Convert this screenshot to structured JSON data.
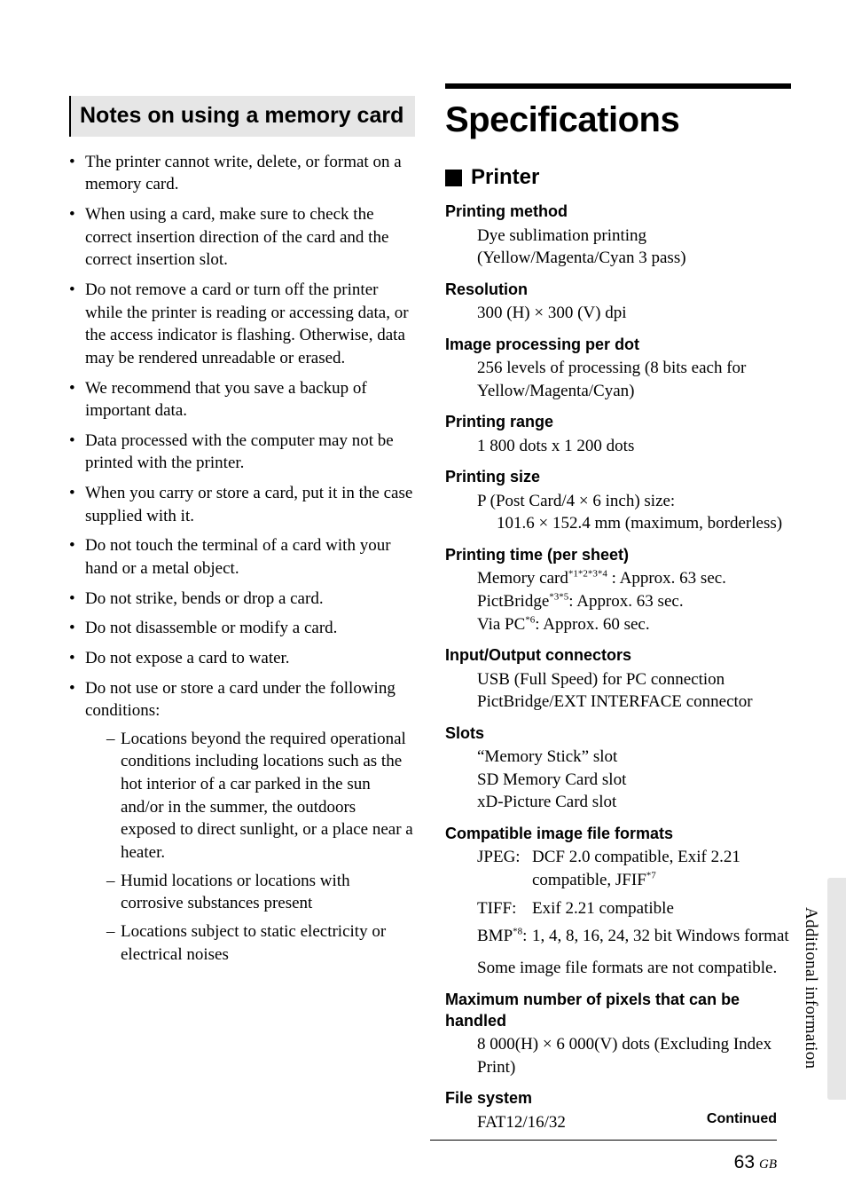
{
  "left": {
    "heading": "Notes on using a memory card",
    "bullets": [
      "The printer cannot write, delete, or format on a memory card.",
      "When using a card, make sure to check the correct insertion direction of the card and the correct insertion slot.",
      "Do not remove a card or turn off the printer while the printer is reading or accessing data, or the access indicator is flashing. Otherwise, data may be rendered unreadable or erased.",
      "We recommend that you save a backup of important data.",
      "Data processed with the computer may not be printed with the printer.",
      "When you carry or store a card, put it in the case supplied with it.",
      "Do not touch the terminal of a card with your hand or a metal object.",
      "Do not strike, bends or drop a card.",
      "Do not disassemble or modify a card.",
      "Do not expose a card to water."
    ],
    "last_bullet_lead": "Do not use or store a card under the following conditions:",
    "sub_dashes": [
      "Locations beyond the required operational conditions including locations such as the hot interior of a car parked in the sun and/or in the summer, the outdoors exposed to direct sunlight, or a place near a heater.",
      "Humid locations or locations with corrosive substances present",
      "Locations subject to static electricity or electrical noises"
    ]
  },
  "right": {
    "title": "Specifications",
    "subhead": "Printer",
    "printing_method": {
      "term": "Printing method",
      "val": "Dye sublimation printing (Yellow/Magenta/Cyan 3 pass)"
    },
    "resolution": {
      "term": "Resolution",
      "val": "300 (H) × 300 (V) dpi"
    },
    "image_proc": {
      "term": "Image processing per dot",
      "val": "256 levels of processing (8 bits each for Yellow/Magenta/Cyan)"
    },
    "printing_range": {
      "term": "Printing range",
      "val": "1 800 dots x 1 200 dots"
    },
    "printing_size": {
      "term": "Printing size",
      "l1": "P (Post Card/4 × 6 inch) size:",
      "l2": "101.6 × 152.4 mm (maximum, borderless)"
    },
    "printing_time": {
      "term": "Printing time (per sheet)",
      "mem_pre": "Memory card",
      "mem_sup": "*1*2*3*4",
      "mem_post": " : Approx. 63 sec.",
      "pb_pre": "PictBridge",
      "pb_sup": "*3*5",
      "pb_post": ": Approx. 63 sec.",
      "pc_pre": "Via PC",
      "pc_sup": "*6",
      "pc_post": ": Approx. 60 sec."
    },
    "io": {
      "term": "Input/Output connectors",
      "l1": "USB (Full Speed) for PC connection",
      "l2": "PictBridge/EXT INTERFACE connector"
    },
    "slots": {
      "term": "Slots",
      "l1": "“Memory Stick” slot",
      "l2": "SD Memory Card slot",
      "l3": "xD-Picture Card slot"
    },
    "formats": {
      "term": "Compatible image file formats",
      "jpeg_label": "JPEG:",
      "jpeg_l1": "DCF 2.0 compatible, Exif 2.21",
      "jpeg_l2_pre": "compatible, JFIF",
      "jpeg_l2_sup": "*7",
      "tiff_label": "TIFF:",
      "tiff_val": "Exif 2.21 compatible",
      "bmp_label_pre": "BMP",
      "bmp_label_sup": "*8",
      "bmp_label_post": ":",
      "bmp_val": "1, 4, 8, 16, 24, 32 bit Windows format",
      "note": "Some image file formats are not compatible."
    },
    "max_pixels": {
      "term": "Maximum number of pixels that can be handled",
      "val": "8 000(H) × 6 000(V) dots (Excluding Index Print)"
    },
    "filesystem": {
      "term": "File system",
      "val": "FAT12/16/32"
    }
  },
  "side": {
    "vertical": "Additional information",
    "continued": "Continued"
  },
  "footer": {
    "page": "63",
    "region": "GB"
  }
}
